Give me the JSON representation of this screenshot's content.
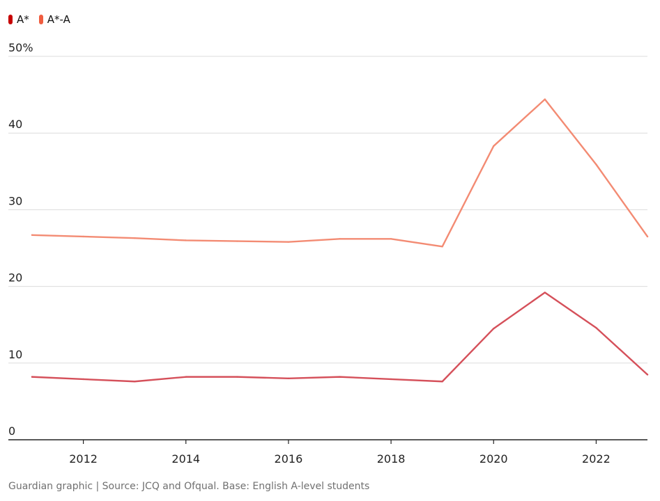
{
  "legend": [
    {
      "label": "A*",
      "color": "#c70000"
    },
    {
      "label": "A*-A",
      "color": "#f05d40"
    }
  ],
  "footer": "Guardian graphic | Source: JCQ and Ofqual. Base: English A-level students",
  "chart_data": {
    "type": "line",
    "x": [
      2011,
      2012,
      2013,
      2014,
      2015,
      2016,
      2017,
      2018,
      2019,
      2020,
      2021,
      2022,
      2023
    ],
    "series": [
      {
        "name": "A*-A",
        "color": "#f38b73",
        "values": [
          26.7,
          26.5,
          26.3,
          26.0,
          25.9,
          25.8,
          26.2,
          26.2,
          25.2,
          38.3,
          44.4,
          35.9,
          26.5
        ]
      },
      {
        "name": "A*",
        "color": "#d5505a",
        "values": [
          8.2,
          7.9,
          7.6,
          8.2,
          8.2,
          8.0,
          8.2,
          7.9,
          7.6,
          14.5,
          19.2,
          14.6,
          8.5
        ]
      }
    ],
    "xlim": [
      2011,
      2023
    ],
    "ylim": [
      0,
      50
    ],
    "y_ticks": [
      "0",
      "10",
      "20",
      "30",
      "40",
      "50%"
    ],
    "y_tick_values": [
      0,
      10,
      20,
      30,
      40,
      50
    ],
    "x_ticks": [
      "2012",
      "2014",
      "2016",
      "2018",
      "2020",
      "2022"
    ],
    "x_tick_values": [
      2012,
      2014,
      2016,
      2018,
      2020,
      2022
    ],
    "grid": true,
    "legend_position": "top-left"
  }
}
